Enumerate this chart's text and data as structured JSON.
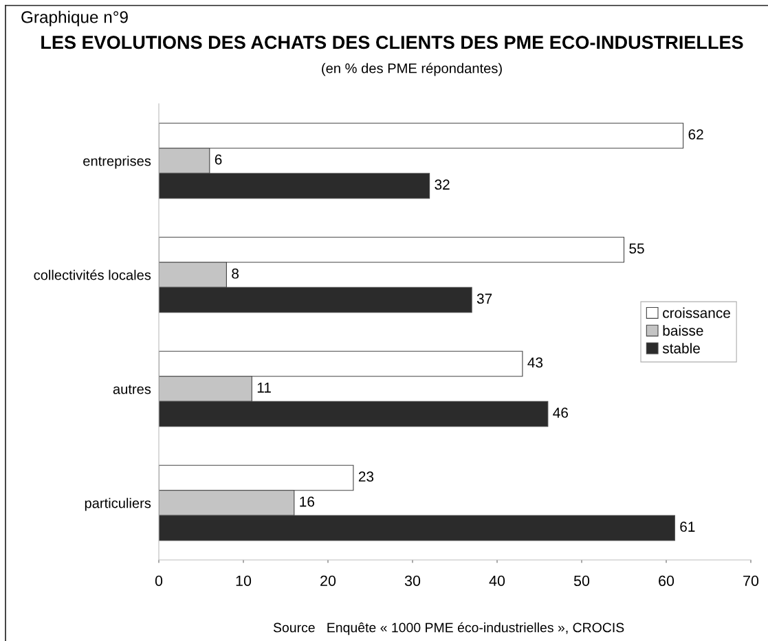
{
  "chart_data": {
    "type": "bar",
    "orientation": "horizontal",
    "title": "LES EVOLUTIONS DES ACHATS DES CLIENTS DES PME ECO-INDUSTRIELLES",
    "subtitle": "(en % des PME répondantes)",
    "annotations": [
      "Graphique n°9",
      "Source   Enquête « 1000 PME éco-industrielles », CROCIS"
    ],
    "categories": [
      "entreprises",
      "collectivités locales",
      "autres",
      "particuliers"
    ],
    "series": [
      {
        "name": "croissance",
        "color": "#ffffff",
        "values": [
          62,
          55,
          43,
          23
        ]
      },
      {
        "name": "baisse",
        "color": "#c4c4c4",
        "values": [
          6,
          8,
          11,
          16
        ]
      },
      {
        "name": "stable",
        "color": "#2b2b2b",
        "values": [
          32,
          37,
          46,
          61
        ]
      }
    ],
    "xlim": [
      0,
      70
    ],
    "xticks": [
      0,
      10,
      20,
      30,
      40,
      50,
      60,
      70
    ],
    "data_labels": true,
    "legend": "right",
    "grid": false
  }
}
